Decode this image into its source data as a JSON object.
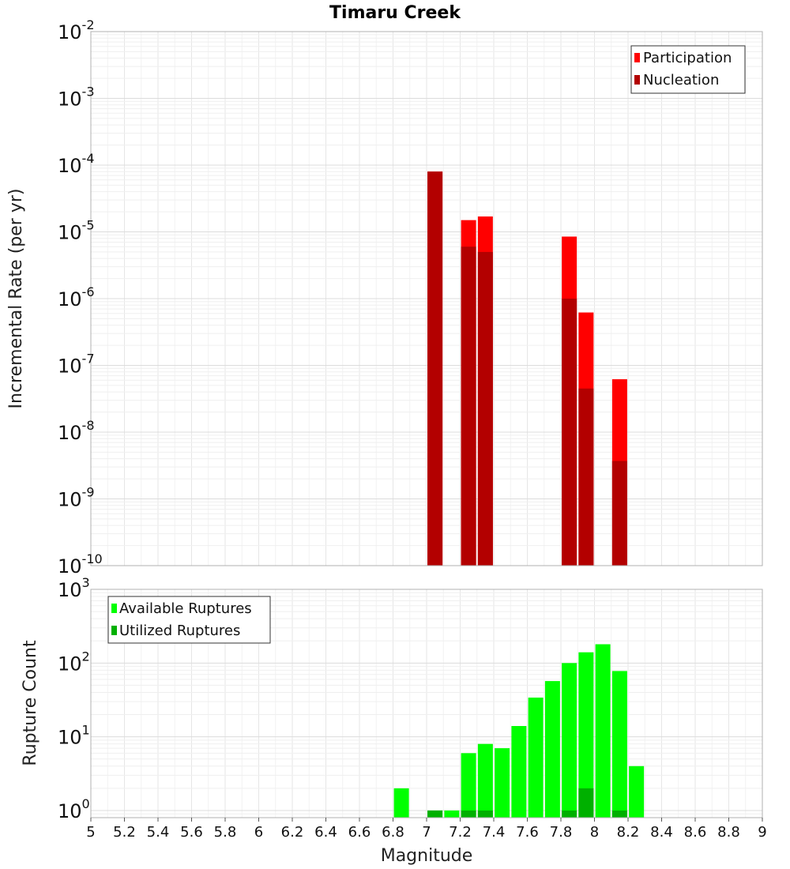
{
  "chart_data": [
    {
      "type": "bar",
      "title": "Timaru Creek",
      "xlabel": "Magnitude",
      "ylabel": "Incremental Rate (per yr)",
      "yscale": "log",
      "xlim": [
        5,
        9
      ],
      "ylim": [
        1e-10,
        0.01
      ],
      "y_tick_exponents": [
        "-10",
        "-9",
        "-8",
        "-7",
        "-6",
        "-5",
        "-4",
        "-3",
        "-2"
      ],
      "y_tick_base": "10",
      "colors": {
        "participation": "#ff0000",
        "nucleation": "#b30000"
      },
      "legend": {
        "position": "top-right",
        "entries": [
          "Participation",
          "Nucleation"
        ]
      },
      "series": [
        {
          "name": "Participation",
          "x": [
            7.05,
            7.25,
            7.35,
            7.85,
            7.95,
            8.15
          ],
          "values": [
            8e-05,
            1.5e-05,
            1.7e-05,
            8.5e-06,
            6.2e-07,
            6.2e-08
          ]
        },
        {
          "name": "Nucleation",
          "x": [
            7.05,
            7.25,
            7.35,
            7.85,
            7.95,
            8.15
          ],
          "values": [
            8e-05,
            6e-06,
            5e-06,
            1e-06,
            4.5e-08,
            3.7e-09
          ]
        }
      ]
    },
    {
      "type": "bar",
      "xlabel": "Magnitude",
      "ylabel": "Rupture Count",
      "yscale": "log",
      "xlim": [
        5,
        9
      ],
      "ylim": [
        0.8,
        1000
      ],
      "y_tick_exponents": [
        "0",
        "1",
        "2",
        "3"
      ],
      "y_tick_base": "10",
      "x_ticks": [
        "5",
        "5.2",
        "5.4",
        "5.6",
        "5.8",
        "6",
        "6.2",
        "6.4",
        "6.6",
        "6.8",
        "7",
        "7.2",
        "7.4",
        "7.6",
        "7.8",
        "8",
        "8.2",
        "8.4",
        "8.6",
        "8.8",
        "9"
      ],
      "colors": {
        "available": "#00ff00",
        "utilized": "#00b000"
      },
      "legend": {
        "position": "top-left",
        "entries": [
          "Available Ruptures",
          "Utilized Ruptures"
        ]
      },
      "series": [
        {
          "name": "Available Ruptures",
          "x": [
            6.85,
            7.05,
            7.15,
            7.25,
            7.35,
            7.45,
            7.55,
            7.65,
            7.75,
            7.85,
            7.95,
            8.05,
            8.15,
            8.25
          ],
          "values": [
            2,
            1,
            1,
            6,
            8,
            7,
            14,
            34,
            57,
            100,
            140,
            180,
            78,
            4
          ]
        },
        {
          "name": "Utilized Ruptures",
          "x": [
            7.05,
            7.25,
            7.35,
            7.85,
            7.95,
            8.15
          ],
          "values": [
            1,
            1,
            1,
            1,
            2,
            1
          ]
        }
      ]
    }
  ]
}
